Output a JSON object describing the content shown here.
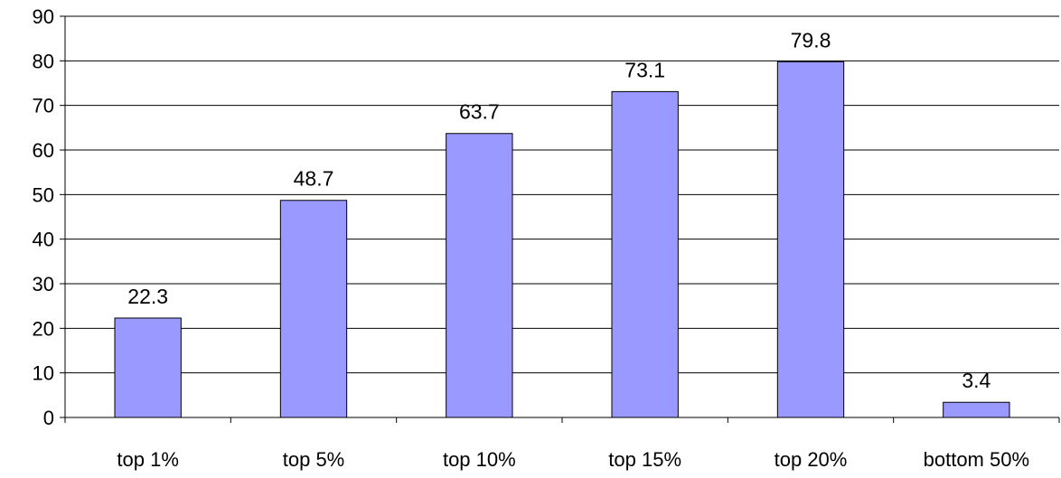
{
  "chart_data": {
    "type": "bar",
    "categories": [
      "top 1%",
      "top 5%",
      "top 10%",
      "top 15%",
      "top 20%",
      "bottom 50%"
    ],
    "values": [
      22.3,
      48.7,
      63.7,
      73.1,
      79.8,
      3.4
    ],
    "data_labels": [
      "22.3",
      "48.7",
      "63.7",
      "73.1",
      "79.8",
      "3.4"
    ],
    "title": "",
    "xlabel": "",
    "ylabel": "",
    "ylim": [
      0,
      90
    ],
    "yticks": [
      0,
      10,
      20,
      30,
      40,
      50,
      60,
      70,
      80,
      90
    ],
    "grid": true,
    "legend": "none",
    "bar_color": "#9999ff",
    "bar_edge_color": "#000000"
  }
}
